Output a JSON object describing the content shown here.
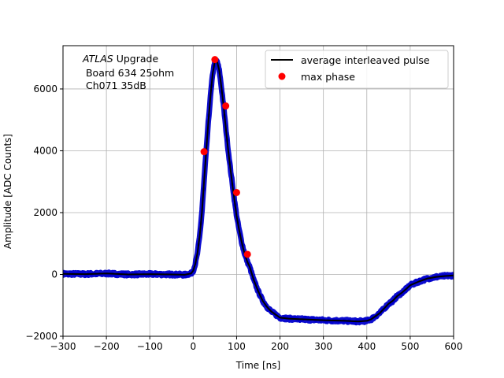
{
  "chart_data": {
    "type": "line",
    "xlabel": "Time [ns]",
    "ylabel": "Amplitude [ADC Counts]",
    "xlim": [
      -300,
      600
    ],
    "ylim": [
      -2000,
      7400
    ],
    "x_ticks": [
      -300,
      -200,
      -100,
      0,
      100,
      200,
      300,
      400,
      500,
      600
    ],
    "x_tick_labels": [
      "−300",
      "−200",
      "−100",
      "0",
      "100",
      "200",
      "300",
      "400",
      "500",
      "600"
    ],
    "y_ticks": [
      -2000,
      0,
      2000,
      4000,
      6000
    ],
    "y_tick_labels": [
      "−2000",
      "0",
      "2000",
      "4000",
      "6000"
    ],
    "grid": true,
    "legend_position": "top-right",
    "annotation": {
      "atlas": "ATLAS",
      "upgrade": " Upgrade",
      "line2": " Board 634 25ohm",
      "line3": " Ch071 35dB"
    },
    "series": [
      {
        "name": "average interleaved pulse",
        "color": "#000000",
        "markers_color": "#0000cc",
        "x": [
          -300,
          -250,
          -200,
          -150,
          -100,
          -50,
          -20,
          -5,
          0,
          5,
          10,
          15,
          20,
          25,
          30,
          35,
          40,
          45,
          50,
          55,
          60,
          65,
          70,
          75,
          80,
          85,
          90,
          95,
          100,
          105,
          110,
          115,
          120,
          125,
          130,
          140,
          150,
          160,
          170,
          180,
          190,
          200,
          220,
          250,
          300,
          350,
          380,
          400,
          410,
          420,
          430,
          440,
          450,
          460,
          470,
          480,
          490,
          500,
          520,
          540,
          560,
          580,
          600
        ],
        "y": [
          20,
          10,
          30,
          0,
          10,
          0,
          -10,
          30,
          120,
          350,
          700,
          1250,
          2000,
          3000,
          4000,
          4950,
          5800,
          6500,
          6900,
          6900,
          6600,
          6050,
          5450,
          4750,
          4100,
          3500,
          2950,
          2400,
          1900,
          1500,
          1150,
          850,
          600,
          400,
          250,
          -200,
          -550,
          -850,
          -1050,
          -1200,
          -1300,
          -1400,
          -1430,
          -1450,
          -1480,
          -1500,
          -1520,
          -1500,
          -1450,
          -1350,
          -1250,
          -1100,
          -950,
          -850,
          -700,
          -600,
          -480,
          -350,
          -230,
          -130,
          -80,
          -50,
          -30
        ]
      },
      {
        "name": "max phase",
        "color": "#ff0000",
        "x": [
          25,
          50,
          75,
          100,
          125
        ],
        "y": [
          3970,
          6950,
          5450,
          2650,
          650
        ]
      }
    ]
  }
}
